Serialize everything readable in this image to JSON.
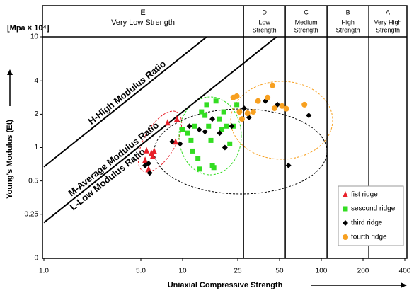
{
  "chart_data": {
    "type": "scatter",
    "x_label": "Uniaxial Compressive Strength",
    "y_label": "Young's Modulus (Et)",
    "y_unit": "[Mpa × 10⁴]",
    "y_origin_label": "0",
    "log_x": true,
    "log_y": true,
    "xlim": [
      1,
      400
    ],
    "ylim": [
      0.1,
      10
    ],
    "xticks": [
      {
        "value": 1,
        "label": "1.0"
      },
      {
        "value": 5,
        "label": "5.0"
      },
      10,
      25,
      50,
      100,
      200,
      400
    ],
    "yticks": [
      0.25,
      0.5,
      1,
      2,
      4,
      10
    ],
    "strength_boundaries": [
      27.5,
      55,
      110,
      220
    ],
    "regions": [
      {
        "code": "E",
        "label": [
          "Very Low Strength"
        ]
      },
      {
        "code": "D",
        "label": [
          "Low",
          "Strength"
        ]
      },
      {
        "code": "C",
        "label": [
          "Medium",
          "Strength"
        ]
      },
      {
        "code": "B",
        "label": [
          "High",
          "Strength"
        ]
      },
      {
        "code": "A",
        "label": [
          "Very High",
          "Strength"
        ]
      }
    ],
    "ratio_lines": [
      {
        "name": "H-High Modulus Ratio",
        "ratio": 0.67
      },
      {
        "name": "M-Average Modulus Ratio",
        "ratio": 0.21
      }
    ],
    "ratio_low_label": "L-Low Modulus Ratio",
    "legend_position": "lower right",
    "series": [
      {
        "name": "fist ridge",
        "color": "#e8202a",
        "marker": "triangle",
        "x": [
          5.37,
          5.69,
          5.96,
          6.24,
          6.1,
          5.5,
          7.8,
          9.1,
          8.9
        ],
        "values": [
          0.77,
          0.64,
          0.89,
          0.93,
          0.84,
          0.94,
          1.68,
          1.81,
          1.13
        ]
      },
      {
        "name": "sescond ridge",
        "color": "#33dd22",
        "marker": "square",
        "x": [
          10.0,
          10.9,
          11.5,
          11.8,
          12.2,
          12.9,
          13.2,
          13.7,
          14.5,
          14.9,
          15.4,
          16.0,
          16.4,
          16.8,
          17.4,
          18.5,
          19.2,
          19.8,
          20.8,
          21.9,
          23.2,
          24.6
        ],
        "values": [
          1.45,
          1.35,
          1.16,
          0.93,
          1.56,
          0.8,
          0.64,
          2.1,
          1.95,
          2.44,
          1.56,
          1.16,
          0.69,
          0.66,
          2.63,
          1.81,
          1.45,
          2.1,
          1.56,
          1.08,
          1.56,
          2.44
        ]
      },
      {
        "name": "third ridge",
        "color": "#000000",
        "marker": "diamond",
        "x": [
          5.37,
          5.69,
          5.8,
          8.4,
          9.6,
          11.2,
          13.2,
          14.5,
          16.4,
          18.5,
          20.2,
          22.6,
          27.8,
          30.1,
          39.5,
          48.3,
          58.0,
          81.2
        ],
        "values": [
          0.69,
          0.72,
          0.59,
          1.13,
          1.08,
          1.56,
          1.45,
          1.39,
          1.81,
          1.35,
          1.0,
          1.56,
          2.26,
          1.87,
          2.63,
          2.44,
          0.69,
          1.95
        ]
      },
      {
        "name": "fourth ridge",
        "color": "#f7a020",
        "marker": "circle",
        "x": [
          23.2,
          24.6,
          25.7,
          26.8,
          29.4,
          32.3,
          35.0,
          41.0,
          44.5,
          46.0,
          52.1,
          56.0,
          75.6
        ],
        "values": [
          2.83,
          2.91,
          2.1,
          1.81,
          2.04,
          2.1,
          2.63,
          2.83,
          3.64,
          2.26,
          2.37,
          2.24,
          2.44
        ]
      }
    ]
  }
}
